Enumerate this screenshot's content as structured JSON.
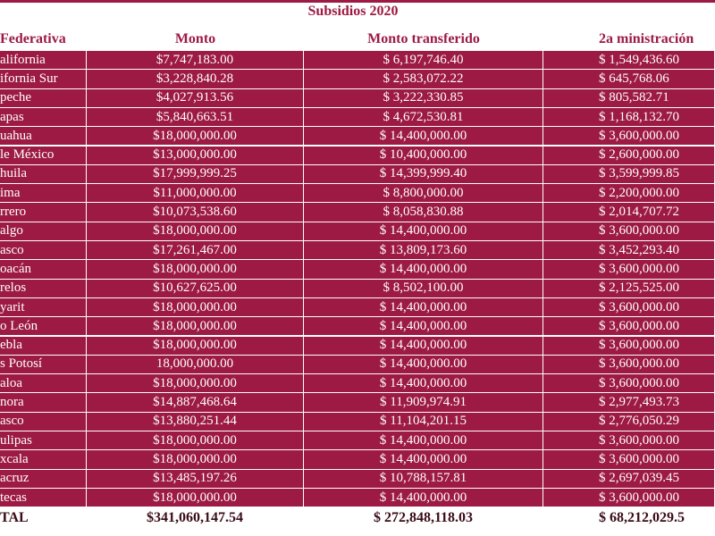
{
  "title": "Subsidios 2020",
  "table": {
    "header": [
      "Federativa",
      "Monto",
      "Monto transferido",
      "2a ministración"
    ],
    "rows": [
      [
        "alifornia",
        "$7,747,183.00",
        "$ 6,197,746.40",
        "$ 1,549,436.60"
      ],
      [
        "ifornia Sur",
        "$3,228,840.28",
        "$ 2,583,072.22",
        "$ 645,768.06"
      ],
      [
        "peche",
        "$4,027,913.56",
        "$ 3,222,330.85",
        "$ 805,582.71"
      ],
      [
        "apas",
        "$5,840,663.51",
        "$ 4,672,530.81",
        "$ 1,168,132.70"
      ],
      [
        "uahua",
        "$18,000,000.00",
        "$ 14,400,000.00",
        "$ 3,600,000.00"
      ],
      [
        "le México",
        "$13,000,000.00",
        "$ 10,400,000.00",
        "$ 2,600,000.00"
      ],
      [
        "huila",
        "$17,999,999.25",
        "$ 14,399,999.40",
        "$ 3,599,999.85"
      ],
      [
        "ima",
        "$11,000,000.00",
        "$ 8,800,000.00",
        "$ 2,200,000.00"
      ],
      [
        "rrero",
        "$10,073,538.60",
        "$ 8,058,830.88",
        "$ 2,014,707.72"
      ],
      [
        "algo",
        "$18,000,000.00",
        "$ 14,400,000.00",
        "$ 3,600,000.00"
      ],
      [
        "asco",
        "$17,261,467.00",
        "$ 13,809,173.60",
        "$ 3,452,293.40"
      ],
      [
        "oacán",
        "$18,000,000.00",
        "$ 14,400,000.00",
        "$ 3,600,000.00"
      ],
      [
        "relos",
        "$10,627,625.00",
        "$ 8,502,100.00",
        "$ 2,125,525.00"
      ],
      [
        "yarit",
        "$18,000,000.00",
        "$ 14,400,000.00",
        "$ 3,600,000.00"
      ],
      [
        "o León",
        "$18,000,000.00",
        "$ 14,400,000.00",
        "$ 3,600,000.00"
      ],
      [
        "ebla",
        "$18,000,000.00",
        "$ 14,400,000.00",
        "$ 3,600,000.00"
      ],
      [
        "s Potosí",
        "18,000,000.00",
        "$ 14,400,000.00",
        "$ 3,600,000.00"
      ],
      [
        "aloa",
        "$18,000,000.00",
        "$ 14,400,000.00",
        "$ 3,600,000.00"
      ],
      [
        "nora",
        "$14,887,468.64",
        "$ 11,909,974.91",
        "$ 2,977,493.73"
      ],
      [
        "asco",
        "$13,880,251.44",
        "$ 11,104,201.15",
        "$ 2,776,050.29"
      ],
      [
        "ulipas",
        "$18,000,000.00",
        "$ 14,400,000.00",
        "$ 3,600,000.00"
      ],
      [
        "xcala",
        "$18,000,000.00",
        "$ 14,400,000.00",
        "$ 3,600,000.00"
      ],
      [
        "acruz",
        "$13,485,197.26",
        "$ 10,788,157.81",
        "$ 2,697,039.45"
      ],
      [
        "tecas",
        "$18,000,000.00",
        "$ 14,400,000.00",
        "$ 3,600,000.00"
      ]
    ],
    "total": [
      "TAL",
      "$341,060,147.54",
      "$ 272,848,118.03",
      "$ 68,212,029.5"
    ]
  }
}
